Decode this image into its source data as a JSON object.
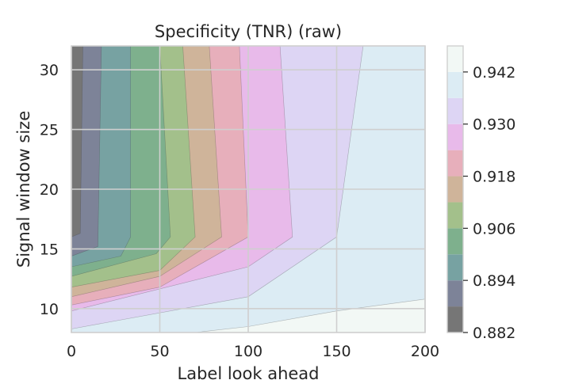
{
  "chart_data": {
    "type": "contour",
    "title": "Specificity (TNR) (raw)",
    "xlabel": "Label look ahead",
    "ylabel": "Signal window size",
    "xlim": [
      0,
      200
    ],
    "ylim": [
      8,
      32
    ],
    "xticks": [
      0,
      50,
      100,
      150,
      200
    ],
    "yticks": [
      10,
      15,
      20,
      25,
      30
    ],
    "grid": true,
    "colorbar": {
      "range": [
        0.882,
        0.948
      ],
      "tick_values": [
        0.882,
        0.894,
        0.906,
        0.918,
        0.93,
        0.942
      ],
      "tick_labels": [
        "0.882",
        "0.894",
        "0.906",
        "0.918",
        "0.930",
        "0.942"
      ],
      "levels": [
        0.882,
        0.888,
        0.894,
        0.9,
        0.906,
        0.912,
        0.918,
        0.924,
        0.93,
        0.936,
        0.942,
        0.948
      ],
      "colors": [
        "#767676",
        "#7d8398",
        "#77a2a2",
        "#7eb08d",
        "#a3c08b",
        "#cfb49a",
        "#e7afbb",
        "#e8baea",
        "#ddd5f4",
        "#dcecf4",
        "#f2f8f5"
      ]
    },
    "boundaries": [
      {
        "level": 0.888,
        "points": [
          [
            0,
            32
          ],
          [
            0,
            16
          ],
          [
            5,
            16.3
          ],
          [
            6.5,
            32
          ]
        ]
      },
      {
        "level": 0.894,
        "points": [
          [
            0,
            32
          ],
          [
            0,
            14.4
          ],
          [
            15,
            15.2
          ],
          [
            17,
            32
          ]
        ]
      },
      {
        "level": 0.9,
        "points": [
          [
            0,
            32
          ],
          [
            0,
            13.5
          ],
          [
            28,
            14.4
          ],
          [
            33.5,
            16
          ],
          [
            33.5,
            32
          ]
        ]
      },
      {
        "level": 0.906,
        "points": [
          [
            0,
            32
          ],
          [
            0,
            12.7
          ],
          [
            48,
            14.6
          ],
          [
            56,
            16
          ],
          [
            50,
            32
          ]
        ]
      },
      {
        "level": 0.912,
        "points": [
          [
            0,
            32
          ],
          [
            0,
            11.8
          ],
          [
            50,
            13.2
          ],
          [
            70,
            16
          ],
          [
            63,
            32
          ]
        ]
      },
      {
        "level": 0.918,
        "points": [
          [
            0,
            32
          ],
          [
            0,
            11
          ],
          [
            50,
            12.7
          ],
          [
            85,
            16
          ],
          [
            78,
            32
          ]
        ]
      },
      {
        "level": 0.924,
        "points": [
          [
            0,
            32
          ],
          [
            0,
            10.3
          ],
          [
            50,
            11.8
          ],
          [
            100,
            16
          ],
          [
            95,
            32
          ]
        ]
      },
      {
        "level": 0.93,
        "points": [
          [
            0,
            32
          ],
          [
            0,
            9.8
          ],
          [
            100,
            13.5
          ],
          [
            125,
            16
          ],
          [
            118,
            32
          ]
        ]
      },
      {
        "level": 0.936,
        "points": [
          [
            0,
            32
          ],
          [
            0,
            8.3
          ],
          [
            100,
            11
          ],
          [
            150,
            16
          ],
          [
            165,
            32
          ]
        ]
      },
      {
        "level": 0.942,
        "points": [
          [
            0,
            32
          ],
          [
            0,
            8
          ],
          [
            70,
            8
          ],
          [
            100,
            8.5
          ],
          [
            150,
            9.8
          ],
          [
            200,
            10.8
          ],
          [
            200,
            32
          ]
        ]
      }
    ]
  }
}
